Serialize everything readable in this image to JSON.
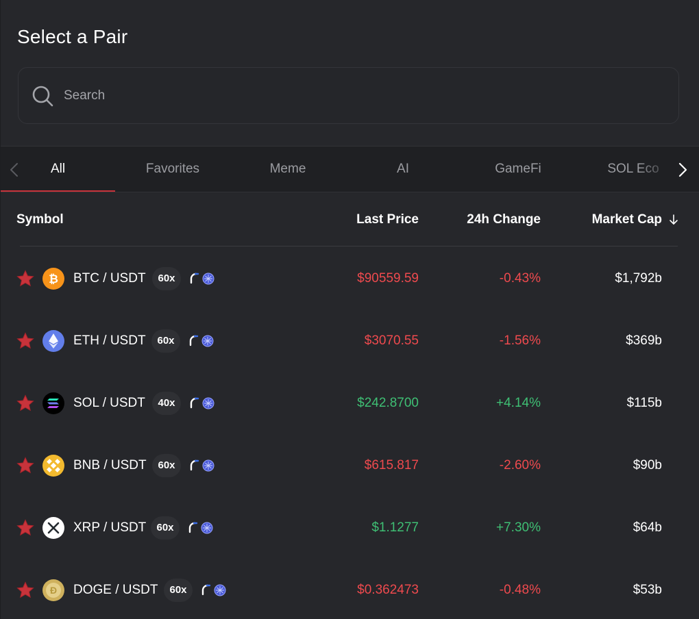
{
  "title": "Select a Pair",
  "search": {
    "placeholder": "Search",
    "value": ""
  },
  "tabs": [
    {
      "label": "All",
      "active": true
    },
    {
      "label": "Favorites",
      "active": false
    },
    {
      "label": "Meme",
      "active": false
    },
    {
      "label": "AI",
      "active": false
    },
    {
      "label": "GameFi",
      "active": false
    },
    {
      "label": "SOL Eco",
      "active": false
    }
  ],
  "columns": {
    "symbol": "Symbol",
    "last_price": "Last Price",
    "change": "24h Change",
    "market_cap": "Market Cap",
    "market_cap_sort_icon": "arrow-down-icon"
  },
  "colors": {
    "negative": "#ef4a4e",
    "positive": "#3fbf74",
    "accent": "#c8333b",
    "favorite_star": "#c8333b"
  },
  "rows": [
    {
      "pair": "BTC / USDT",
      "leverage": "60x",
      "price": "$90559.59",
      "change": "-0.43%",
      "market_cap": "$1,792b",
      "trend": "down",
      "coin_icon": "bitcoin-icon"
    },
    {
      "pair": "ETH / USDT",
      "leverage": "60x",
      "price": "$3070.55",
      "change": "-1.56%",
      "market_cap": "$369b",
      "trend": "down",
      "coin_icon": "ethereum-icon"
    },
    {
      "pair": "SOL / USDT",
      "leverage": "40x",
      "price": "$242.8700",
      "change": "+4.14%",
      "market_cap": "$115b",
      "trend": "up",
      "coin_icon": "solana-icon"
    },
    {
      "pair": "BNB / USDT",
      "leverage": "60x",
      "price": "$615.817",
      "change": "-2.60%",
      "market_cap": "$90b",
      "trend": "down",
      "coin_icon": "bnb-icon"
    },
    {
      "pair": "XRP / USDT",
      "leverage": "60x",
      "price": "$1.1277",
      "change": "+7.30%",
      "market_cap": "$64b",
      "trend": "up",
      "coin_icon": "xrp-icon"
    },
    {
      "pair": "DOGE / USDT",
      "leverage": "60x",
      "price": "$0.362473",
      "change": "-0.48%",
      "market_cap": "$53b",
      "trend": "down",
      "coin_icon": "dogecoin-icon"
    }
  ]
}
